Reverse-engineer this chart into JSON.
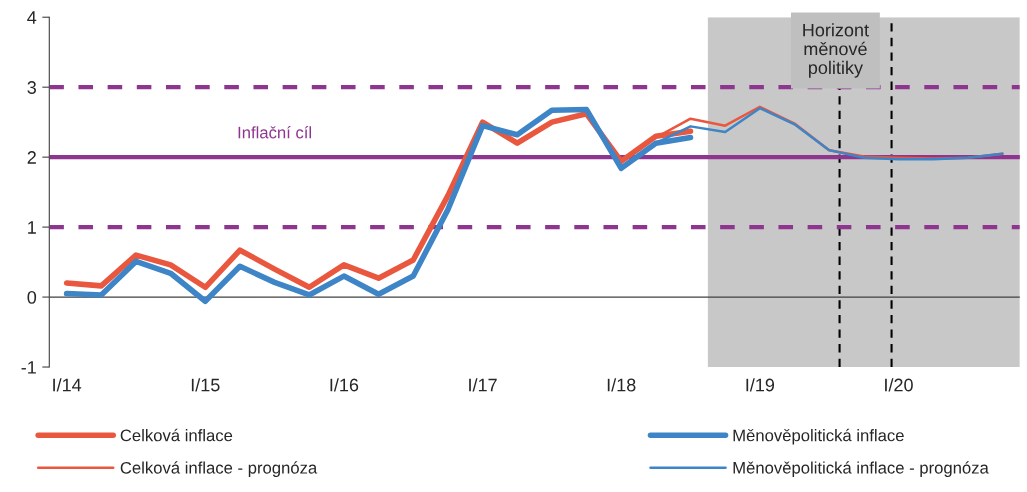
{
  "chart_data": {
    "type": "line",
    "categories": [
      "I/14",
      null,
      null,
      null,
      "I/15",
      null,
      null,
      null,
      "I/16",
      null,
      null,
      null,
      "I/17",
      null,
      null,
      null,
      "I/18",
      null,
      null,
      null,
      "I/19",
      null,
      null,
      null,
      "I/20",
      null,
      null,
      null
    ],
    "series": [
      {
        "name": "Celková inflace",
        "color": "#e9573f",
        "values": [
          0.2,
          0.16,
          0.6,
          0.46,
          0.14,
          0.67,
          0.4,
          0.14,
          0.46,
          0.27,
          0.53,
          1.45,
          2.5,
          2.2,
          2.5,
          2.62,
          1.94,
          2.3,
          2.37,
          null,
          null,
          null,
          null,
          null,
          null,
          null,
          null,
          null
        ]
      },
      {
        "name": "Měnověpolitická inflace",
        "color": "#3d85c6",
        "values": [
          0.05,
          0.03,
          0.51,
          0.34,
          -0.06,
          0.44,
          0.21,
          0.03,
          0.3,
          0.04,
          0.3,
          1.25,
          2.45,
          2.32,
          2.67,
          2.68,
          1.84,
          2.2,
          2.28,
          null,
          null,
          null,
          null,
          null,
          null,
          null,
          null,
          null
        ]
      },
      {
        "name": "Celková inflace - prognóza",
        "color": "#e9573f",
        "values": [
          null,
          null,
          null,
          null,
          null,
          null,
          null,
          null,
          null,
          null,
          null,
          null,
          null,
          null,
          null,
          null,
          null,
          2.28,
          2.55,
          2.45,
          2.72,
          2.48,
          2.1,
          2.01,
          1.99,
          1.98,
          1.99,
          2.05
        ]
      },
      {
        "name": "Měnověpolitická inflace - prognóza",
        "color": "#3d85c6",
        "values": [
          null,
          null,
          null,
          null,
          null,
          null,
          null,
          null,
          null,
          null,
          null,
          null,
          null,
          null,
          null,
          null,
          null,
          2.2,
          2.44,
          2.36,
          2.7,
          2.47,
          2.1,
          1.99,
          1.97,
          1.97,
          1.99,
          2.05
        ]
      }
    ],
    "ylim": [
      -1,
      4
    ],
    "yticks": [
      -1,
      0,
      1,
      2,
      3,
      4
    ],
    "ref_lines": [
      {
        "axis": "y",
        "value": 3,
        "color": "#8e3590",
        "line_style": "dashed"
      },
      {
        "axis": "y",
        "value": 2,
        "label": "Inflační cíl",
        "color": "#8e3590",
        "line_style": "solid"
      },
      {
        "axis": "y",
        "value": 1,
        "color": "#8e3590",
        "line_style": "dashed"
      }
    ],
    "annotations": [
      "Horizont\nměnové\npolitiky"
    ],
    "legend": "bottom",
    "grid": false
  }
}
